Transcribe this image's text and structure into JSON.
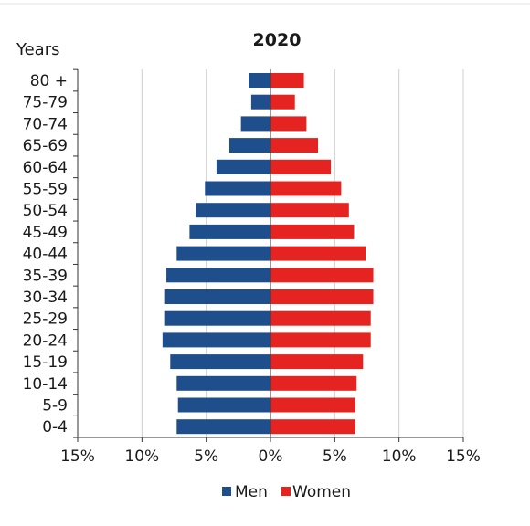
{
  "chart_data": {
    "type": "bar",
    "orientation": "horizontal",
    "diverging": true,
    "title": "2020",
    "ylabel": "Years",
    "xlabel": "",
    "categories": [
      "80 +",
      "75-79",
      "70-74",
      "65-69",
      "60-64",
      "55-59",
      "50-54",
      "45-49",
      "40-44",
      "35-39",
      "30-34",
      "25-29",
      "20-24",
      "15-19",
      "10-14",
      "5-9",
      "0-4"
    ],
    "xlim": [
      -15,
      15
    ],
    "x_ticks": [
      -15,
      -10,
      -5,
      0,
      5,
      10,
      15
    ],
    "x_tick_labels": [
      "15%",
      "10%",
      "5%",
      "0%",
      "5%",
      "10%",
      "15%"
    ],
    "series": [
      {
        "name": "Men",
        "color": "#1f4e8c",
        "side": "left",
        "values": [
          1.7,
          1.5,
          2.3,
          3.2,
          4.2,
          5.1,
          5.8,
          6.3,
          7.3,
          8.1,
          8.2,
          8.2,
          8.4,
          7.8,
          7.3,
          7.2,
          7.3
        ]
      },
      {
        "name": "Women",
        "color": "#e52421",
        "side": "right",
        "values": [
          2.6,
          1.9,
          2.8,
          3.7,
          4.7,
          5.5,
          6.1,
          6.5,
          7.4,
          8.0,
          8.0,
          7.8,
          7.8,
          7.2,
          6.7,
          6.6,
          6.6
        ]
      }
    ],
    "grid": "vertical",
    "legend_position": "bottom"
  }
}
